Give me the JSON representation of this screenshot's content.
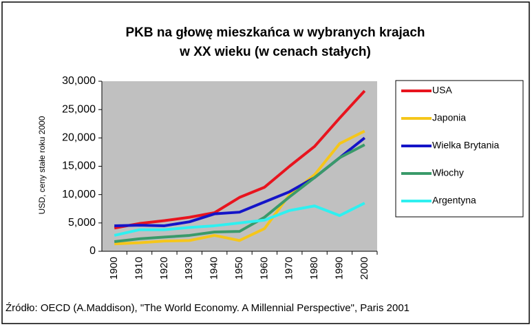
{
  "chart_data": {
    "type": "line",
    "title": [
      "PKB na głowę mieszkańca w wybranych krajach",
      "w XX wieku (w cenach stałych)"
    ],
    "y_label": "USD, ceny stałe roku 2000",
    "source": "Źródło: OECD (A.Maddison), \"The World Economy. A Millennial Perspective\", Paris 2001",
    "categories": [
      "1900",
      "1910",
      "1920",
      "1930",
      "1940",
      "1950",
      "1960",
      "1970",
      "1980",
      "1990",
      "2000"
    ],
    "series": [
      {
        "name": "USA",
        "color": "#e8141e",
        "values": [
          4100,
          4900,
          5400,
          6000,
          6800,
          9500,
          11300,
          15000,
          18500,
          23500,
          28300
        ]
      },
      {
        "name": "Japonia",
        "color": "#f5c61a",
        "values": [
          1300,
          1500,
          1800,
          1900,
          2800,
          1900,
          4000,
          10000,
          13500,
          19000,
          21200
        ]
      },
      {
        "name": "Wielka Brytania",
        "color": "#1414c8",
        "values": [
          4500,
          4600,
          4500,
          5200,
          6600,
          6900,
          8700,
          10500,
          13000,
          16500,
          20000
        ]
      },
      {
        "name": "Włochy",
        "color": "#3a9a6a",
        "values": [
          1700,
          2200,
          2500,
          2800,
          3400,
          3500,
          6000,
          9600,
          13000,
          16500,
          18800
        ]
      },
      {
        "name": "Argentyna",
        "color": "#2ff0f0",
        "values": [
          2800,
          3800,
          3800,
          4200,
          4500,
          5000,
          5500,
          7200,
          8000,
          6300,
          8500
        ]
      }
    ],
    "ylim": [
      0,
      30000
    ],
    "yticks": [
      0,
      {
        "value": 5000,
        "label": "5,000"
      },
      {
        "value": 10000,
        "label": "10,000"
      },
      {
        "value": 15000,
        "label": "15,000"
      },
      {
        "value": 20000,
        "label": "20,000"
      },
      {
        "value": 25000,
        "label": "25,000"
      },
      {
        "value": 30000,
        "label": "30,000"
      }
    ],
    "plot_background": "#c0c0c0",
    "legend": "right"
  }
}
